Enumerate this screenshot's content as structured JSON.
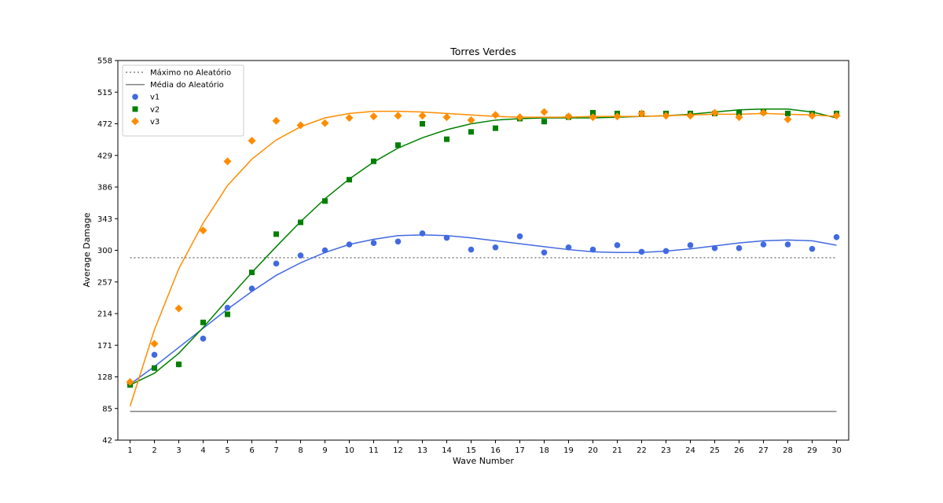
{
  "chart_data": {
    "type": "scatter",
    "title": "Torres Verdes",
    "xlabel": "Wave Number",
    "ylabel": "Average Damage",
    "x": [
      1,
      2,
      3,
      4,
      5,
      6,
      7,
      8,
      9,
      10,
      11,
      12,
      13,
      14,
      15,
      16,
      17,
      18,
      19,
      20,
      21,
      22,
      23,
      24,
      25,
      26,
      27,
      28,
      29,
      30
    ],
    "xlim": [
      0.5,
      30.5
    ],
    "ylim": [
      42,
      558
    ],
    "yticks": [
      42,
      85,
      128,
      171,
      214,
      257,
      300,
      343,
      386,
      429,
      472,
      515,
      558
    ],
    "grid": false,
    "legend_position": "top-left",
    "reference_lines": [
      {
        "name": "Máximo no Aleatório",
        "value": 290,
        "style": "dotted",
        "color": "#808080"
      },
      {
        "name": "Média do Aleatório",
        "value": 81,
        "style": "solid",
        "color": "#808080"
      }
    ],
    "series": [
      {
        "name": "v1",
        "color": "#4169e1",
        "marker": "circle",
        "values": [
          118,
          158,
          145,
          180,
          222,
          248,
          282,
          293,
          300,
          308,
          310,
          312,
          323,
          317,
          301,
          304,
          319,
          297,
          304,
          301,
          307,
          298,
          299,
          307,
          303,
          303,
          308,
          308,
          302,
          318
        ],
        "trend": [
          118,
          142,
          168,
          194,
          220,
          244,
          266,
          283,
          297,
          308,
          315,
          320,
          321,
          320,
          317,
          313,
          309,
          305,
          301,
          298,
          297,
          297,
          299,
          302,
          306,
          310,
          313,
          314,
          313,
          307
        ]
      },
      {
        "name": "v2",
        "color": "#008000",
        "marker": "square",
        "values": [
          117,
          140,
          145,
          202,
          213,
          270,
          322,
          338,
          367,
          396,
          421,
          443,
          472,
          451,
          461,
          466,
          479,
          475,
          481,
          487,
          486,
          486,
          486,
          486,
          486,
          487,
          488,
          486,
          486,
          486
        ],
        "trend": [
          117,
          133,
          160,
          195,
          233,
          270,
          305,
          339,
          370,
          397,
          420,
          439,
          453,
          464,
          472,
          477,
          479,
          480,
          480,
          480,
          481,
          482,
          483,
          485,
          488,
          491,
          492,
          492,
          488,
          480
        ]
      },
      {
        "name": "v3",
        "color": "#ff8c00",
        "marker": "diamond",
        "values": [
          121,
          173,
          221,
          327,
          421,
          449,
          476,
          470,
          473,
          480,
          482,
          483,
          483,
          481,
          477,
          484,
          481,
          488,
          482,
          481,
          482,
          486,
          483,
          483,
          487,
          481,
          487,
          478,
          483,
          483
        ],
        "trend": [
          88,
          192,
          275,
          337,
          388,
          424,
          450,
          468,
          480,
          486,
          489,
          489,
          488,
          486,
          484,
          482,
          481,
          481,
          481,
          482,
          482,
          482,
          483,
          484,
          485,
          485,
          486,
          485,
          484,
          482
        ]
      }
    ]
  }
}
